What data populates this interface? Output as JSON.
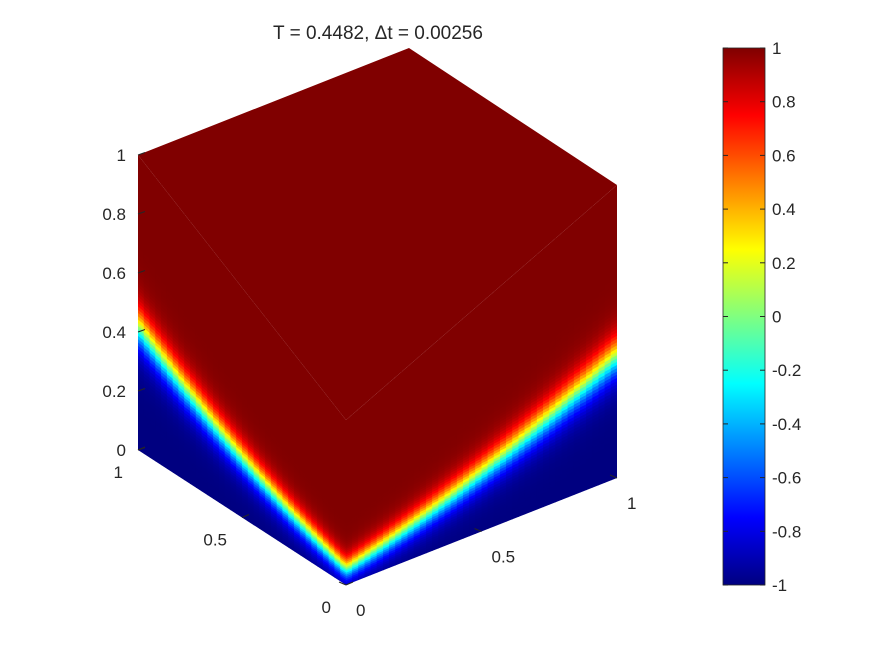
{
  "chart_data": {
    "type": "surface3d",
    "title": "T = 0.4482,  Δt = 0.00256",
    "colormap": "jet",
    "clim": [
      -1,
      1
    ],
    "xlim": [
      0,
      1
    ],
    "ylim": [
      0,
      1
    ],
    "zlim": [
      0,
      1
    ],
    "z_ticks": [
      {
        "label": "0",
        "value": 0
      },
      {
        "label": "0.2",
        "value": 0.2
      },
      {
        "label": "0.4",
        "value": 0.4
      },
      {
        "label": "0.6",
        "value": 0.6
      },
      {
        "label": "0.8",
        "value": 0.8
      },
      {
        "label": "1",
        "value": 1
      }
    ],
    "left_axis_ticks": [
      {
        "label": "0",
        "value": 0
      },
      {
        "label": "0.5",
        "value": 0.5
      },
      {
        "label": "1",
        "value": 1
      }
    ],
    "right_axis_ticks": [
      {
        "label": "0",
        "value": 0
      },
      {
        "label": "0.5",
        "value": 0.5
      },
      {
        "label": "1",
        "value": 1
      }
    ],
    "colorbar_ticks": [
      {
        "label": "1",
        "value": 1
      },
      {
        "label": "0.8",
        "value": 0.8
      },
      {
        "label": "0.6",
        "value": 0.6
      },
      {
        "label": "0.4",
        "value": 0.4
      },
      {
        "label": "0.2",
        "value": 0.2
      },
      {
        "label": "0",
        "value": 0
      },
      {
        "label": "-0.2",
        "value": -0.2
      },
      {
        "label": "-0.4",
        "value": -0.4
      },
      {
        "label": "-0.6",
        "value": -0.6
      },
      {
        "label": "-0.8",
        "value": -0.8
      },
      {
        "label": "-1",
        "value": -1
      }
    ],
    "interface_height_front_edges": 0.42,
    "interface_height_front_corner": 0.1,
    "interface_width": 0.08,
    "top_face_value": 1,
    "bottom_value": -1
  }
}
